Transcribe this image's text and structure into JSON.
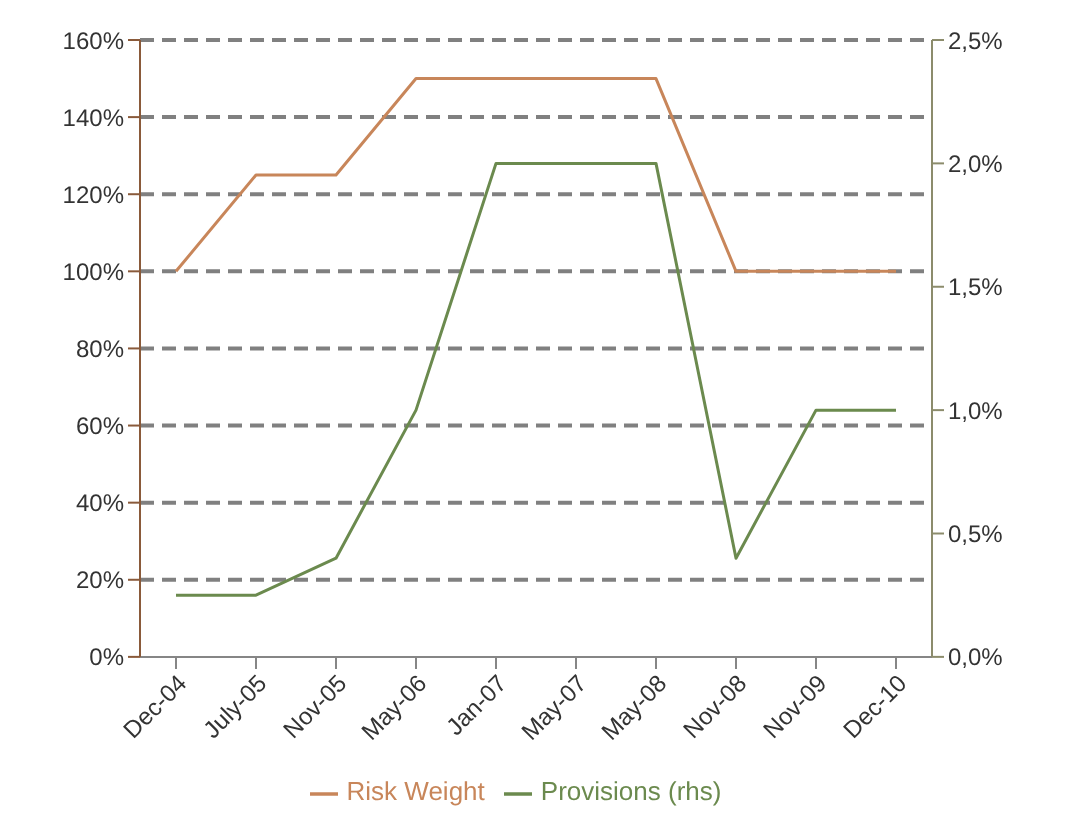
{
  "chart_data": {
    "type": "line",
    "categories": [
      "Dec-04",
      "July-05",
      "Nov-05",
      "May-06",
      "Jan-07",
      "May-07",
      "May-08",
      "Nov-08",
      "Nov-09",
      "Dec-10"
    ],
    "series": [
      {
        "name": "Risk Weight",
        "color": "#c8865a",
        "values": [
          100,
          125,
          125,
          150,
          150,
          150,
          150,
          100,
          100,
          100
        ]
      },
      {
        "name": "Provisions (rhs)",
        "color": "#6b8a4e",
        "axis": "y2",
        "values": [
          0.25,
          0.25,
          0.4,
          1.0,
          2.0,
          2.0,
          2.0,
          0.4,
          1.0,
          1.0
        ]
      }
    ],
    "ylim": [
      0,
      160
    ],
    "yticks": [
      {
        "value": 0,
        "label": "0%"
      },
      {
        "value": 20,
        "label": "20%"
      },
      {
        "value": 40,
        "label": "40%"
      },
      {
        "value": 60,
        "label": "60%"
      },
      {
        "value": 80,
        "label": "80%"
      },
      {
        "value": 100,
        "label": "100%"
      },
      {
        "value": 120,
        "label": "120%"
      },
      {
        "value": 140,
        "label": "140%"
      },
      {
        "value": 160,
        "label": "160%"
      }
    ],
    "y2lim": [
      0,
      2.5
    ],
    "y2ticks": [
      {
        "value": 0,
        "label": "0,0%"
      },
      {
        "value": 0.5,
        "label": "0,5%"
      },
      {
        "value": 1,
        "label": "1,0%"
      },
      {
        "value": 1.5,
        "label": "1,5%"
      },
      {
        "value": 2,
        "label": "2,0%"
      },
      {
        "value": 2.5,
        "label": "2,5%"
      }
    ],
    "grid": "y",
    "legend": "bottom",
    "line_style": "solid"
  }
}
